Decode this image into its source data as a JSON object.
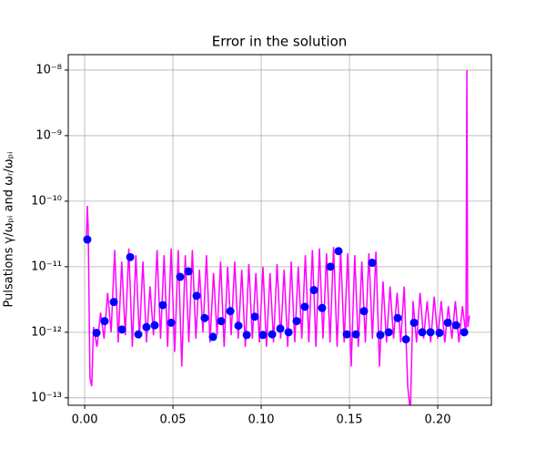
{
  "chart_data": {
    "type": "line",
    "title": "Error in the solution",
    "ylabel": "Pulsations  γ/ωₚᵢ and ωᵣ/ωₚᵢ",
    "xlim": [
      -0.0093,
      0.2304
    ],
    "xticks": [
      {
        "value": 0,
        "label": "0.00"
      },
      0.05,
      {
        "value": 0.1,
        "label": "0.10"
      },
      0.15,
      {
        "value": 0.2,
        "label": "0.20"
      }
    ],
    "ylim": [
      7.7e-14,
      1.72e-08
    ],
    "yscale": "log",
    "yticks": [
      {
        "value": 1e-13,
        "label": "10⁻¹³"
      },
      {
        "value": 1e-12,
        "label": "10⁻¹²"
      },
      {
        "value": 1e-11,
        "label": "10⁻¹¹"
      },
      {
        "value": 1e-10,
        "label": "10⁻¹⁰"
      },
      {
        "value": 1e-09,
        "label": "10⁻⁹"
      },
      {
        "value": 1e-08,
        "label": "10⁻⁸"
      }
    ],
    "grid": true,
    "series": [
      {
        "color": "#ff00ff",
        "linestyle": "-",
        "marker": "none",
        "x": [
          0.001,
          0.0015,
          0.002,
          0.003,
          0.004,
          0.005,
          0.007,
          0.009,
          0.011,
          0.013,
          0.015,
          0.017,
          0.019,
          0.021,
          0.023,
          0.025,
          0.027,
          0.029,
          0.031,
          0.033,
          0.035,
          0.037,
          0.039,
          0.041,
          0.043,
          0.045,
          0.047,
          0.049,
          0.051,
          0.053,
          0.055,
          0.057,
          0.059,
          0.061,
          0.063,
          0.065,
          0.067,
          0.069,
          0.071,
          0.073,
          0.075,
          0.077,
          0.079,
          0.081,
          0.083,
          0.085,
          0.087,
          0.089,
          0.091,
          0.093,
          0.095,
          0.097,
          0.099,
          0.101,
          0.103,
          0.105,
          0.107,
          0.109,
          0.111,
          0.113,
          0.115,
          0.117,
          0.119,
          0.121,
          0.123,
          0.125,
          0.127,
          0.129,
          0.131,
          0.133,
          0.135,
          0.137,
          0.139,
          0.141,
          0.143,
          0.145,
          0.147,
          0.149,
          0.151,
          0.153,
          0.155,
          0.157,
          0.159,
          0.161,
          0.163,
          0.165,
          0.167,
          0.169,
          0.171,
          0.173,
          0.175,
          0.177,
          0.179,
          0.181,
          0.183,
          0.1845,
          0.186,
          0.188,
          0.19,
          0.192,
          0.194,
          0.196,
          0.198,
          0.2,
          0.202,
          0.204,
          0.206,
          0.208,
          0.21,
          0.212,
          0.214,
          0.216,
          0.2165,
          0.217,
          0.218
        ],
        "values": [
          2.6e-11,
          8.5e-11,
          4e-11,
          2e-13,
          1.5e-13,
          1.2e-12,
          6e-13,
          2e-12,
          8e-13,
          4e-12,
          1e-12,
          1.8e-11,
          7e-13,
          1.2e-11,
          9e-13,
          1.9e-11,
          6e-13,
          1.5e-11,
          8e-13,
          1.2e-11,
          7e-13,
          5e-12,
          9e-13,
          1.8e-11,
          8e-13,
          1.5e-11,
          6e-13,
          1.9e-11,
          5e-13,
          1.8e-11,
          3e-13,
          1.5e-11,
          7e-13,
          1.8e-11,
          8e-13,
          9e-12,
          1e-12,
          1.5e-11,
          7e-13,
          8e-12,
          9e-13,
          1.2e-11,
          6e-13,
          1e-11,
          9e-13,
          1.2e-11,
          8e-13,
          9e-12,
          6e-13,
          1.1e-11,
          8e-13,
          8e-12,
          7e-13,
          1e-11,
          6e-13,
          8e-12,
          7e-13,
          1.1e-11,
          8e-13,
          9e-12,
          6e-13,
          1.2e-11,
          7e-13,
          1e-11,
          8e-13,
          1.5e-11,
          7e-13,
          1.8e-11,
          6e-13,
          1.9e-11,
          8e-13,
          1.6e-11,
          7e-13,
          2e-11,
          6e-13,
          1.8e-11,
          7e-13,
          1.6e-11,
          3e-13,
          1.5e-11,
          6e-13,
          1.2e-11,
          7e-13,
          1.6e-11,
          8e-13,
          1.7e-11,
          3e-13,
          6e-12,
          7e-13,
          5e-12,
          8e-13,
          4e-12,
          7e-13,
          5e-12,
          1.5e-13,
          6e-14,
          3e-12,
          7e-13,
          4e-12,
          8e-13,
          3e-12,
          7e-13,
          3.5e-12,
          8e-13,
          3e-12,
          7e-13,
          2.5e-12,
          8e-13,
          3e-12,
          7e-13,
          2.5e-12,
          9e-13,
          1e-08,
          1.2e-12,
          1.8e-12
        ]
      },
      {
        "color": "#0000ff",
        "linestyle": "none",
        "marker": "o",
        "x": [
          0.0015,
          0.0067,
          0.0113,
          0.0165,
          0.0211,
          0.0258,
          0.0304,
          0.035,
          0.0397,
          0.0443,
          0.049,
          0.0541,
          0.0588,
          0.0634,
          0.068,
          0.0727,
          0.0773,
          0.0825,
          0.0871,
          0.0918,
          0.0964,
          0.101,
          0.1062,
          0.1108,
          0.1155,
          0.1201,
          0.1247,
          0.1299,
          0.1345,
          0.1392,
          0.1438,
          0.1485,
          0.1536,
          0.1582,
          0.1629,
          0.1675,
          0.1722,
          0.1773,
          0.182,
          0.1866,
          0.1912,
          0.1959,
          0.201,
          0.2057,
          0.2103,
          0.215
        ],
        "values": [
          2.6e-11,
          9.8e-13,
          1.48e-12,
          2.9e-12,
          1.1e-12,
          1.4e-11,
          9.3e-13,
          1.2e-12,
          1.28e-12,
          2.6e-12,
          1.4e-12,
          7e-12,
          8.5e-12,
          3.6e-12,
          1.65e-12,
          8.5e-13,
          1.48e-12,
          2.1e-12,
          1.26e-12,
          9.1e-13,
          1.73e-12,
          9.1e-13,
          9.3e-13,
          1.14e-12,
          1e-12,
          1.48e-12,
          2.45e-12,
          4.4e-12,
          2.35e-12,
          1e-11,
          1.73e-11,
          9.3e-13,
          9.3e-13,
          2.1e-12,
          1.15e-11,
          9.1e-13,
          1e-12,
          1.65e-12,
          7.8e-13,
          1.4e-12,
          1e-12,
          1e-12,
          9.8e-13,
          1.4e-12,
          1.28e-12,
          1e-12
        ]
      }
    ]
  }
}
